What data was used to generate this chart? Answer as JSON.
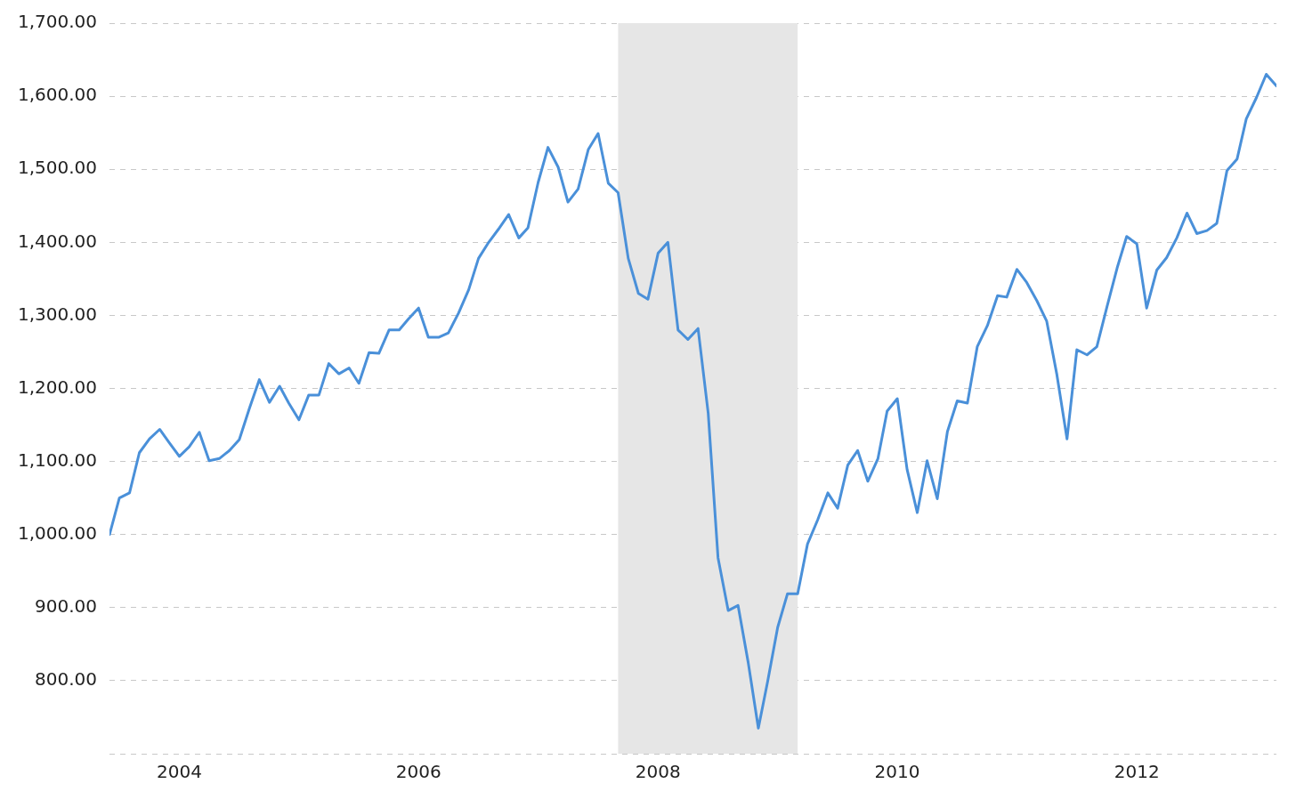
{
  "chart_data": {
    "type": "line",
    "x": [
      "2003-09",
      "2003-10",
      "2003-11",
      "2003-12",
      "2004-01",
      "2004-02",
      "2004-03",
      "2004-04",
      "2004-05",
      "2004-06",
      "2004-07",
      "2004-08",
      "2004-09",
      "2004-10",
      "2004-11",
      "2004-12",
      "2005-01",
      "2005-02",
      "2005-03",
      "2005-04",
      "2005-05",
      "2005-06",
      "2005-07",
      "2005-08",
      "2005-09",
      "2005-10",
      "2005-11",
      "2005-12",
      "2006-01",
      "2006-02",
      "2006-03",
      "2006-04",
      "2006-05",
      "2006-06",
      "2006-07",
      "2006-08",
      "2006-09",
      "2006-10",
      "2006-11",
      "2006-12",
      "2007-01",
      "2007-02",
      "2007-03",
      "2007-04",
      "2007-05",
      "2007-06",
      "2007-07",
      "2007-08",
      "2007-09",
      "2007-10",
      "2007-11",
      "2007-12",
      "2008-01",
      "2008-02",
      "2008-03",
      "2008-04",
      "2008-05",
      "2008-06",
      "2008-07",
      "2008-08",
      "2008-09",
      "2008-10",
      "2008-11",
      "2008-12",
      "2009-01",
      "2009-02",
      "2009-03",
      "2009-04",
      "2009-05",
      "2009-06",
      "2009-07",
      "2009-08",
      "2009-09",
      "2009-10",
      "2009-11",
      "2009-12",
      "2010-01",
      "2010-02",
      "2010-03",
      "2010-04",
      "2010-05",
      "2010-06",
      "2010-07",
      "2010-08",
      "2010-09",
      "2010-10",
      "2010-11",
      "2010-12",
      "2011-01",
      "2011-02",
      "2011-03",
      "2011-04",
      "2011-05",
      "2011-06",
      "2011-07",
      "2011-08",
      "2011-09",
      "2011-10",
      "2011-11",
      "2011-12",
      "2012-01",
      "2012-02",
      "2012-03",
      "2012-04",
      "2012-05",
      "2012-06",
      "2012-07",
      "2012-08",
      "2012-09",
      "2012-10",
      "2012-11",
      "2012-12",
      "2013-01",
      "2013-02",
      "2013-03",
      "2013-04",
      "2013-05",
      "2013-06"
    ],
    "series": [
      {
        "color": "#4a90d9",
        "values": [
          1000,
          1050,
          1057,
          1112,
          1131,
          1144,
          1126,
          1107,
          1120,
          1140,
          1101,
          1104,
          1115,
          1130,
          1173,
          1212,
          1181,
          1203,
          1180,
          1157,
          1191,
          1191,
          1234,
          1220,
          1228,
          1207,
          1249,
          1248,
          1280,
          1280,
          1295,
          1310,
          1270,
          1270,
          1276,
          1303,
          1335,
          1378,
          1400,
          1418,
          1438,
          1406,
          1420,
          1482,
          1530,
          1503,
          1455,
          1473,
          1527,
          1549,
          1481,
          1468,
          1378,
          1330,
          1322,
          1385,
          1400,
          1280,
          1267,
          1282,
          1166,
          968,
          896,
          903,
          825,
          735,
          798,
          873,
          919,
          919,
          987,
          1020,
          1057,
          1036,
          1095,
          1115,
          1073,
          1104,
          1169,
          1186,
          1089,
          1030,
          1101,
          1049,
          1141,
          1183,
          1180,
          1257,
          1286,
          1327,
          1325,
          1363,
          1345,
          1320,
          1292,
          1219,
          1131,
          1253,
          1246,
          1257,
          1312,
          1365,
          1408,
          1398,
          1310,
          1362,
          1379,
          1406,
          1440,
          1412,
          1416,
          1426,
          1498,
          1514,
          1569,
          1598,
          1630,
          1614
        ]
      }
    ],
    "xlim": [
      "2003-09",
      "2013-06"
    ],
    "xticks": [
      {
        "value": "2004-04",
        "label": "2004"
      },
      {
        "value": "2006-04",
        "label": "2006"
      },
      {
        "value": "2008-04",
        "label": "2008"
      },
      {
        "value": "2010-04",
        "label": "2010"
      },
      {
        "value": "2012-04",
        "label": "2012"
      }
    ],
    "ylim": [
      700,
      1700
    ],
    "yticks": [
      {
        "value": 700,
        "label": null
      },
      {
        "value": 800,
        "label": "800.00"
      },
      {
        "value": 900,
        "label": "900.00"
      },
      {
        "value": 1000,
        "label": "1,000.00"
      },
      {
        "value": 1100,
        "label": "1,100.00"
      },
      {
        "value": 1200,
        "label": "1,200.00"
      },
      {
        "value": 1300,
        "label": "1,300.00"
      },
      {
        "value": 1400,
        "label": "1,400.00"
      },
      {
        "value": 1500,
        "label": "1,500.00"
      },
      {
        "value": 1600,
        "label": "1,600.00"
      },
      {
        "value": 1700,
        "label": "1,700.00"
      }
    ],
    "bands": [
      {
        "axis": "x",
        "from": "2007-12",
        "to": "2009-06",
        "color": "#e6e6e6"
      }
    ],
    "grid": "y",
    "legend": false,
    "marker": "none",
    "line_style": "solid"
  }
}
